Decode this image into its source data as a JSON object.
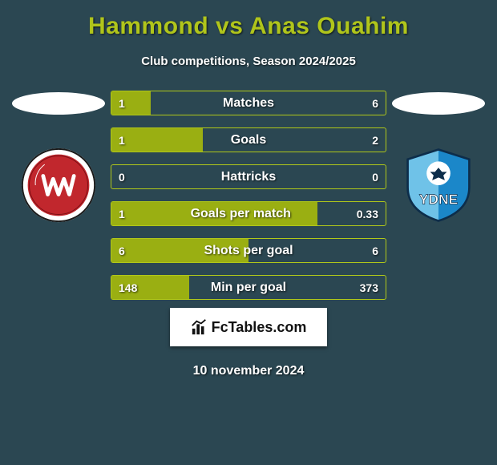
{
  "title": "Hammond vs Anas Ouahim",
  "subtitle": "Club competitions, Season 2024/2025",
  "date": "10 november 2024",
  "logo_text": "FcTables.com",
  "colors": {
    "background": "#2b4752",
    "accent": "#b0c51b",
    "bar_fill": "#9aaf12",
    "bar_border": "#b1c819",
    "text": "#ffffff"
  },
  "bars": [
    {
      "label": "Matches",
      "left": "1",
      "right": "6",
      "left_pct": 14.3
    },
    {
      "label": "Goals",
      "left": "1",
      "right": "2",
      "left_pct": 33.3
    },
    {
      "label": "Hattricks",
      "left": "0",
      "right": "0",
      "left_pct": 0
    },
    {
      "label": "Goals per match",
      "left": "1",
      "right": "0.33",
      "left_pct": 75
    },
    {
      "label": "Shots per goal",
      "left": "6",
      "right": "6",
      "left_pct": 50
    },
    {
      "label": "Min per goal",
      "left": "148",
      "right": "373",
      "left_pct": 28.4
    }
  ],
  "teams": {
    "left": {
      "name": "Western Sydney Wanderers",
      "badge_colors": {
        "ring": "#ffffff",
        "body": "#c1272d",
        "accent": "#1a1a1a"
      }
    },
    "right": {
      "name": "Sydney FC",
      "badge_colors": {
        "body": "#1b87c9",
        "light": "#6fc2e8",
        "accent": "#0d2d4a",
        "ball": "#ffffff"
      }
    }
  }
}
